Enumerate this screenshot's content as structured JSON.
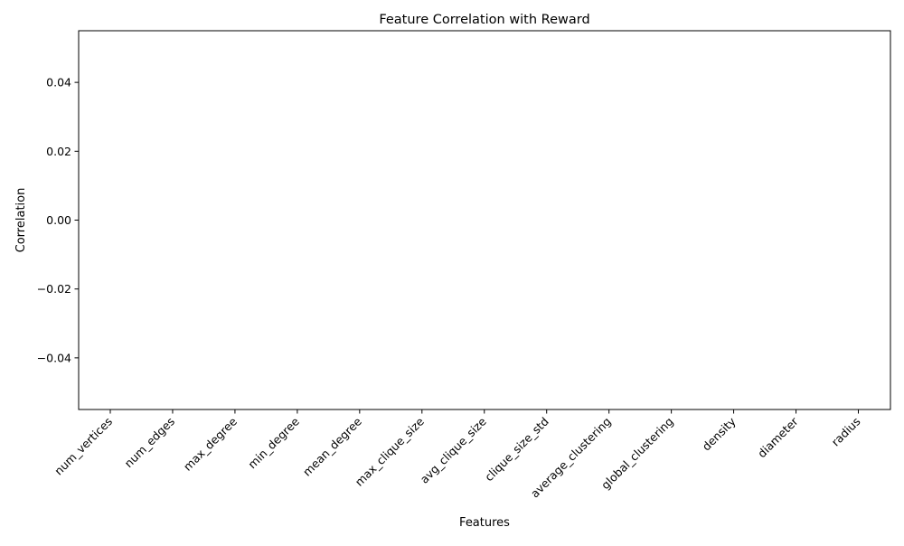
{
  "chart_data": {
    "type": "bar",
    "title": "Feature Correlation with Reward",
    "xlabel": "Features",
    "ylabel": "Correlation",
    "categories": [
      "num_vertices",
      "num_edges",
      "max_degree",
      "min_degree",
      "mean_degree",
      "max_clique_size",
      "avg_clique_size",
      "clique_size_std",
      "average_clustering",
      "global_clustering",
      "density",
      "diameter",
      "radius"
    ],
    "values": [
      0,
      0,
      0,
      0,
      0,
      0,
      0,
      0,
      0,
      0,
      0,
      0,
      0
    ],
    "ylim": [
      -0.055,
      0.055
    ],
    "yticks": [
      -0.04,
      -0.02,
      0.0,
      0.02,
      0.04
    ],
    "ytick_labels": [
      "−0.04",
      "−0.02",
      "0.00",
      "0.02",
      "0.04"
    ],
    "grid": false,
    "legend": "none",
    "colors": {
      "bar": "#1f77b4",
      "axis": "#000000",
      "background": "#ffffff"
    }
  }
}
